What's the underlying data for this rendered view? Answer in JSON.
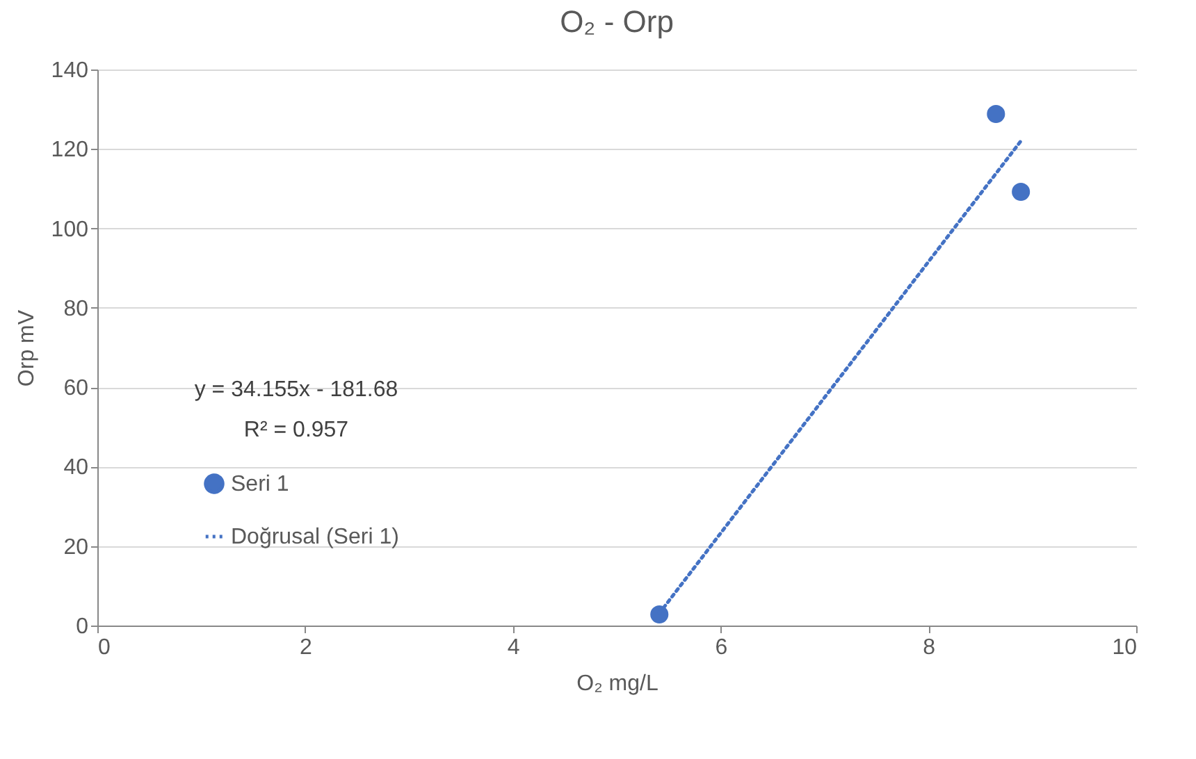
{
  "chart_data": {
    "type": "scatter",
    "title": "O₂ - Orp",
    "xlabel": "O₂ mg/L",
    "ylabel": "Orp mV",
    "series": [
      {
        "name": "Seri 1",
        "color": "#4472c4",
        "marker": "circle",
        "x": [
          8.65,
          8.89,
          5.41
        ],
        "values": [
          128.8,
          109.2,
          2.8
        ]
      },
      {
        "name": "Doğrusal (Seri 1)",
        "type": "line",
        "color": "#4472c4",
        "line_style": "dotted",
        "x": [
          5.41,
          8.89
        ],
        "values": [
          3.1,
          122
        ]
      }
    ],
    "annotations": [
      "y = 34.155x - 181.68",
      "R² = 0.957"
    ],
    "xlim": [
      0,
      10
    ],
    "xticks": [
      0,
      2,
      4,
      6,
      8,
      10
    ],
    "ylim": [
      0,
      140
    ],
    "yticks": [
      0,
      20,
      40,
      60,
      80,
      100,
      120,
      140
    ],
    "grid": "y",
    "legend": "left"
  }
}
